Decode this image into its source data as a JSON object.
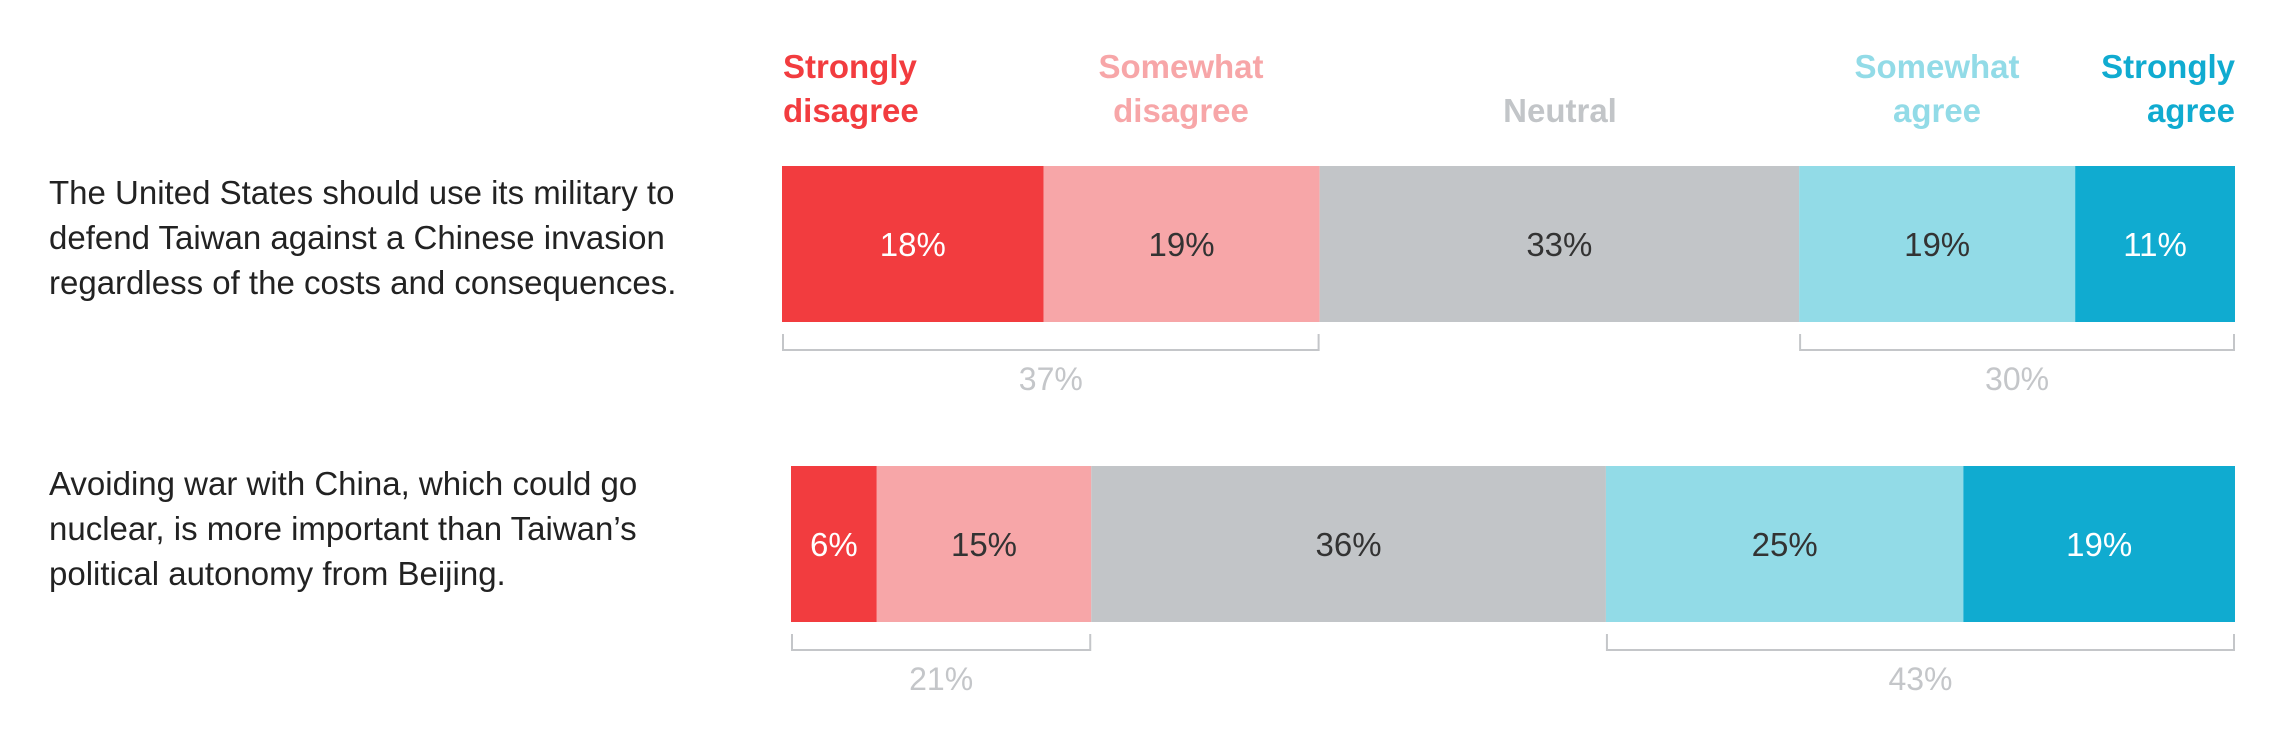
{
  "chart_data": {
    "type": "bar",
    "orientation": "horizontal",
    "stacked": true,
    "normalized": true,
    "legend": [
      {
        "key": "strongly_disagree",
        "lines": [
          "Strongly",
          "disagree"
        ],
        "color": "#f23c3f",
        "align": "start"
      },
      {
        "key": "somewhat_disagree",
        "lines": [
          "Somewhat",
          "disagree"
        ],
        "color": "#f7a6a8",
        "align": "middle"
      },
      {
        "key": "neutral",
        "lines": [
          "Neutral"
        ],
        "color": "#c2c5c8",
        "align": "middle"
      },
      {
        "key": "somewhat_agree",
        "lines": [
          "Somewhat",
          "agree"
        ],
        "color": "#92dbe7",
        "align": "middle"
      },
      {
        "key": "strongly_agree",
        "lines": [
          "Strongly",
          "agree"
        ],
        "color": "#10abd0",
        "align": "end"
      }
    ],
    "categories": [
      "The United States should use its military to defend Taiwan against a Chinese invasion regardless of the costs and consequences.",
      "Avoiding war with China, which could go nuclear, is more important than Taiwan’s political autonomy from Beijing."
    ],
    "series": [
      {
        "name": "Strongly disagree",
        "values": [
          18,
          6
        ],
        "labels": [
          "18%",
          "6%"
        ],
        "label_color": "#ffffff"
      },
      {
        "name": "Somewhat disagree",
        "values": [
          19,
          15
        ],
        "labels": [
          "19%",
          "15%"
        ],
        "label_color": "#333333"
      },
      {
        "name": "Neutral",
        "values": [
          33,
          36
        ],
        "labels": [
          "33%",
          "36%"
        ],
        "label_color": "#333333"
      },
      {
        "name": "Somewhat agree",
        "values": [
          19,
          25
        ],
        "labels": [
          "19%",
          "25%"
        ],
        "label_color": "#333333"
      },
      {
        "name": "Strongly agree",
        "values": [
          11,
          19
        ],
        "labels": [
          "11%",
          "19%"
        ],
        "label_color": "#ffffff"
      }
    ],
    "totals": [
      {
        "disagree": "37%",
        "agree": "30%"
      },
      {
        "disagree": "21%",
        "agree": "43%"
      }
    ],
    "statements": [
      [
        "The United States should use its military to",
        "defend Taiwan against a Chinese invasion",
        "regardless of the costs and consequences."
      ],
      [
        "Avoiding war with China, which could go",
        "nuclear, is more important than Taiwan’s",
        "political autonomy from Beijing."
      ]
    ]
  }
}
